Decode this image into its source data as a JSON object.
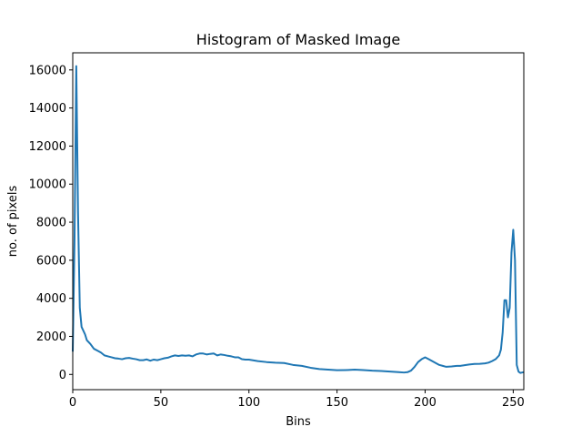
{
  "chart_data": {
    "type": "line",
    "title": "Histogram of Masked Image",
    "xlabel": "Bins",
    "ylabel": "no. of pixels",
    "xlim": [
      0,
      256
    ],
    "ylim": [
      -800,
      16900
    ],
    "xticks": [
      0,
      50,
      100,
      150,
      200,
      250
    ],
    "yticks": [
      0,
      2000,
      4000,
      6000,
      8000,
      10000,
      12000,
      14000,
      16000
    ],
    "grid": false,
    "color": "#1f77b4",
    "series": [
      {
        "x": [
          0,
          1,
          2,
          3,
          4,
          5,
          6,
          7,
          8,
          10,
          12,
          14,
          16,
          18,
          20,
          22,
          24,
          26,
          28,
          30,
          32,
          34,
          36,
          38,
          40,
          42,
          44,
          46,
          48,
          50,
          52,
          54,
          56,
          58,
          60,
          62,
          64,
          66,
          68,
          70,
          72,
          74,
          76,
          78,
          80,
          82,
          84,
          86,
          88,
          90,
          92,
          94,
          96,
          98,
          100,
          105,
          110,
          115,
          120,
          125,
          130,
          135,
          140,
          145,
          150,
          155,
          160,
          165,
          170,
          175,
          180,
          185,
          188,
          190,
          192,
          194,
          196,
          198,
          200,
          202,
          204,
          206,
          208,
          210,
          212,
          215,
          218,
          220,
          222,
          225,
          228,
          231,
          234,
          236,
          238,
          240,
          242,
          243,
          244,
          245,
          246,
          247,
          248,
          249,
          250,
          251,
          252,
          253,
          254,
          255,
          256
        ],
        "y": [
          1200,
          7000,
          16200,
          8500,
          3500,
          2500,
          2300,
          2100,
          1800,
          1600,
          1350,
          1250,
          1150,
          1000,
          950,
          900,
          850,
          830,
          800,
          850,
          870,
          830,
          800,
          750,
          750,
          790,
          720,
          780,
          750,
          800,
          850,
          880,
          950,
          1000,
          970,
          1000,
          980,
          1000,
          950,
          1050,
          1100,
          1100,
          1050,
          1080,
          1100,
          1000,
          1050,
          1020,
          980,
          950,
          900,
          900,
          800,
          780,
          780,
          700,
          650,
          620,
          600,
          500,
          450,
          350,
          280,
          250,
          220,
          230,
          250,
          230,
          200,
          180,
          150,
          120,
          100,
          120,
          200,
          400,
          650,
          800,
          900,
          800,
          700,
          600,
          500,
          450,
          400,
          420,
          450,
          450,
          480,
          520,
          550,
          560,
          580,
          620,
          700,
          800,
          1000,
          1300,
          2200,
          3900,
          3900,
          3000,
          3500,
          6400,
          7600,
          6000,
          500,
          150,
          80,
          100,
          120
        ]
      }
    ]
  }
}
